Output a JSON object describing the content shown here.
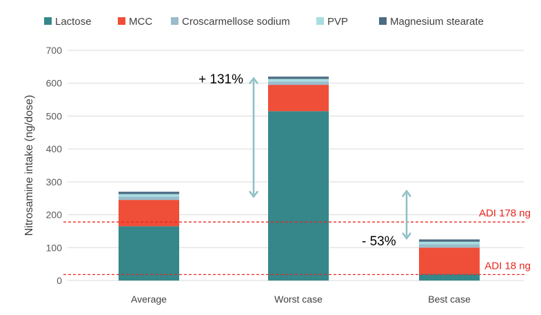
{
  "chart_data": {
    "type": "bar",
    "stacked": true,
    "categories": [
      "Average",
      "Worst case",
      "Best case"
    ],
    "ylabel": "Nitrosamine intake (ng/dose)",
    "ylim": [
      0,
      700
    ],
    "yticks": [
      0,
      100,
      200,
      300,
      400,
      500,
      600,
      700
    ],
    "grid": true,
    "legend_position": "top",
    "series": [
      {
        "name": "Lactose",
        "color": "#35878A",
        "values": [
          165,
          515,
          20
        ]
      },
      {
        "name": "MCC",
        "color": "#EF4E38",
        "values": [
          80,
          80,
          80
        ]
      },
      {
        "name": "Croscarmellose sodium",
        "color": "#9ABCCB",
        "values": [
          10,
          10,
          10
        ]
      },
      {
        "name": "PVP",
        "color": "#A8DDE1",
        "values": [
          8,
          8,
          8
        ]
      },
      {
        "name": "Magnesium stearate",
        "color": "#4C6C83",
        "values": [
          7,
          7,
          7
        ]
      }
    ],
    "reference_lines": [
      {
        "label": "ADI 178 ng",
        "value": 178,
        "color": "#E8261E"
      },
      {
        "label": "ADI 18 ng",
        "value": 18,
        "color": "#E8261E"
      }
    ],
    "annotations": [
      {
        "text": "+ 131%",
        "arrow_from": 255,
        "arrow_to": 615,
        "color": "#8DBFC3"
      },
      {
        "text": "- 53%",
        "arrow_from": 128,
        "arrow_to": 272,
        "color": "#8DBFC3"
      }
    ]
  }
}
